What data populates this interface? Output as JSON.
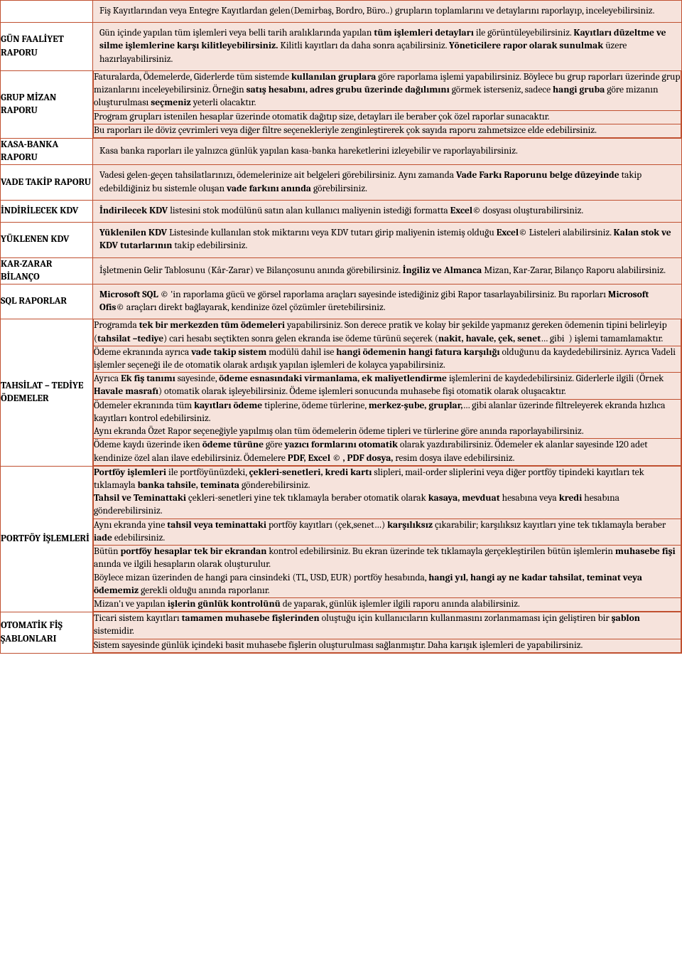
{
  "rows": [
    {
      "label": "GÜN FAALİYET RAPORU",
      "cells": [
        "Fiş Kayıtlarından veya Entegre Kayıtlardan gelen(Demirbaş, Bordro, Büro..) grupların toplamlarını ve detaylarını raporlayıp, inceleyebilirsiniz.",
        "Gün içinde yapılan tüm işlemleri veya belli tarih aralıklarında yapılan <b>tüm işlemleri detayları</b> ile görüntüleyebilirsiniz. <b>Kayıtları düzeltme ve silme işlemlerine karşı kilitleyebilirsiniz.</b> Kilitli kayıtları da daha sonra açabilirsiniz. <b>Yöneticilere rapor olarak sunulmak</b> üzere hazırlayabilirsiniz."
      ]
    },
    {
      "label": "GRUP MİZAN RAPORU",
      "cells": [
        "Faturalarda, Ödemelerde, Giderlerde tüm sistemde <b>kullanılan gruplara</b> göre raporlama işlemi yapabilirsiniz. Böylece bu grup raporları üzerinde grup mizanlarını inceleyebilirsiniz. Örneğin <b>satış hesabını, adres grubu üzerinde dağılımını</b> görmek isterseniz, sadece <b>hangi gruba</b> göre mizanın oluşturulması <b>seçmeniz</b> yeterli olacaktır.",
        "Program grupları istenilen hesaplar üzerinde otomatik dağıtıp size, detayları ile beraber çok özel raporlar sunacaktır.",
        "Bu raporları ile döviz çevrimleri veya diğer filtre seçenekleriyle zenginleştirerek çok sayıda raporu zahmetsizce elde edebilirsiniz."
      ]
    },
    {
      "label": "KASA-BANKA RAPORU",
      "cells": [
        "Kasa banka raporları ile yalnızca günlük yapılan kasa-banka hareketlerini izleyebilir ve raporlayabilirsiniz."
      ]
    },
    {
      "label": "VADE TAKİP RAPORU",
      "cells": [
        "Vadesi gelen-geçen tahsilatlarınızı, ödemelerinize ait belgeleri görebilirsiniz. Aynı zamanda <b>Vade Farkı Raporunu belge düzeyinde</b> takip edebildiğiniz bu sistemle oluşan <b>vade farkını anında</b> görebilirsiniz."
      ]
    },
    {
      "label": "İNDİRİLECEK KDV",
      "cells": [
        "<b>İndirilecek KDV</b> listesini stok modülünü satın alan kullanıcı maliyenin istediği formatta <b>Excel©</b> dosyası oluşturabilirsiniz."
      ]
    },
    {
      "label": "YÜKLENEN KDV",
      "cells": [
        "<b>Yüklenilen KDV</b> Listesinde kullanılan stok miktarını veya KDV tutarı girip maliyenin istemiş olduğu <b>Excel©</b> Listeleri alabilirsiniz. <b>Kalan stok ve KDV tutarlarının</b> takip edebilirsiniz."
      ]
    },
    {
      "label": "KAR-ZARAR BİLANÇO",
      "cells": [
        "İşletmenin Gelir Tablosunu (Kâr-Zarar) ve Bilançosunu anında görebilirsiniz. <b>İngiliz ve Almanca</b> Mizan, Kar-Zarar, Bilanço Raporu alabilirsiniz."
      ]
    },
    {
      "label": "SQL RAPORLAR",
      "cells": [
        "<b>Microsoft SQL ©</b> 'in raporlama gücü ve görsel raporlama araçları sayesinde istediğiniz gibi Rapor tasarlayabilirsiniz. Bu raporları <b>Microsoft Ofis©</b> araçları direkt bağlayarak, kendinize özel çözümler üretebilirsiniz."
      ]
    },
    {
      "label": "TAHSİLAT – TEDİYE ÖDEMELER",
      "cells": [
        "Programda <b>tek bir merkezden tüm ödemeleri</b> yapabilirsiniz. Son derece pratik ve kolay bir şekilde yapmanız gereken ödemenin tipini belirleyip (<b>tahsilat –tediye</b>) cari hesabı seçtikten sonra gelen ekranda ise ödeme türünü seçerek (<b>nakit, havale, çek, senet</b>… gibi&nbsp;&nbsp;) işlemi tamamlamaktır.",
        "Ödeme ekranında ayrıca <b>vade takip sistem</b> modülü dahil ise <b>hangi ödemenin hangi fatura karşılığı</b> olduğunu da kaydedebilirsiniz. Ayrıca Vadeli işlemler seçeneği ile de otomatik olarak ardışık yapılan işlemleri de kolayca yapabilirsiniz.",
        "Ayrıca <b>Ek fiş tanımı</b> sayesinde, <b>ödeme esnasındaki virmanlama, ek maliyetlendirme</b> işlemlerini de kaydedebilirsiniz. Giderlerle ilgili (Örnek <b>Havale masrafı</b>) otomatik olarak işleyebilirsiniz. Ödeme işlemleri sonucunda muhasebe fişi otomatik olarak oluşacaktır.",
        "Ödemeler ekranında tüm <b>kayıtları ödeme</b> tiplerine, ödeme türlerine, <b>merkez-şube, gruplar,</b>… gibi alanlar üzerinde filtreleyerek ekranda hızlıca kayıtları kontrol edebilirsiniz.<br>Aynı ekranda Özet Rapor seçeneğiyle yapılmış olan tüm ödemelerin ödeme tipleri ve türlerine göre anında raporlayabilirsiniz.",
        "Ödeme kaydı üzerinde iken <b>ödeme türüne</b> göre <b>yazıcı formlarını otomatik</b> olarak yazdırabilirsiniz. Ödemeler ek alanlar sayesinde 120 adet kendinize özel alan ilave edebilirsiniz. Ödemelere <b>PDF, Excel © , PDF dosya,</b> resim dosya ilave edebilirsiniz."
      ]
    },
    {
      "label": "PORTFÖY İŞLEMLERİ",
      "cells": [
        "<b>Portföy işlemleri</b> ile portföyünüzdeki, <b>çekleri-senetleri, kredi kartı</b> slipleri, mail-order sliplerini veya diğer portföy tipindeki kayıtları tek tıklamayla <b>banka tahsile, teminata</b> gönderebilirsiniz.<br><b>Tahsil ve Teminattaki</b> çekleri-senetleri yine tek tıklamayla beraber otomatik olarak <b>kasaya, mevduat</b> hesabına veya <b>kredi</b> hesabına gönderebilirsiniz.",
        "Aynı ekranda yine <b>tahsil veya teminattaki</b> portföy kayıtları (çek,senet…) <b>karşılıksız</b> çıkarabilir; karşılıksız kayıtları yine tek tıklamayla beraber <b>iade</b> edebilirsiniz.",
        "Bütün <b>portföy hesaplar tek bir ekrandan</b> kontrol edebilirsiniz. Bu ekran üzerinde tek tıklamayla gerçekleştirilen bütün işlemlerin <b>muhasebe fişi</b> anında ve ilgili hesapların olarak oluşturulur.<br>Böylece mizan üzerinden de hangi para cinsindeki (TL, USD, EUR) portföy hesabında, <b>hangi yıl, hangi ay ne kadar tahsilat, teminat veya ödememiz</b> gerekli olduğu anında raporlanır.",
        "Mizan'ı ve yapılan <b>işlerin günlük kontrolünü</b> de yaparak, günlük işlemler ilgili raporu anında alabilirsiniz."
      ]
    },
    {
      "label": "OTOMATİK FİŞ ŞABLONLARI",
      "cells": [
        "Ticari sistem kayıtları <b>tamamen muhasebe fişlerinden</b> oluştuğu için kullanıcıların kullanmasını zorlanmaması için geliştiren bir <b>şablon</b> sistemidir.",
        "Sistem sayesinde günlük içindeki basit muhasebe fişlerin oluşturulması sağlanmıştır. Daha karışık işlemleri de yapabilirsiniz."
      ]
    }
  ]
}
